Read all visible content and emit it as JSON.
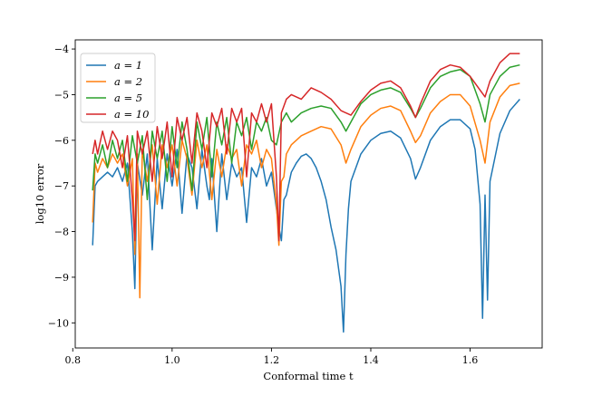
{
  "chart_data": {
    "type": "line",
    "title": "",
    "xlabel": "Conformal time t",
    "ylabel": "log10 error",
    "xlim": [
      0.805,
      1.745
    ],
    "ylim": [
      -10.55,
      -3.8
    ],
    "xticks": [
      0.8,
      1.0,
      1.2,
      1.4,
      1.6
    ],
    "xtick_labels": [
      "0.8",
      "1.0",
      "1.2",
      "1.4",
      "1.6"
    ],
    "yticks": [
      -4,
      -5,
      -6,
      -7,
      -8,
      -9,
      -10
    ],
    "ytick_labels": [
      "−4",
      "−5",
      "−6",
      "−7",
      "−8",
      "−9",
      "−10"
    ],
    "grid": false,
    "legend_position": "top-left",
    "series": [
      {
        "name": "a = 1",
        "color": "#1f77b4",
        "x": [
          0.84,
          0.845,
          0.85,
          0.86,
          0.87,
          0.88,
          0.89,
          0.9,
          0.91,
          0.92,
          0.925,
          0.93,
          0.94,
          0.95,
          0.96,
          0.97,
          0.98,
          0.99,
          1.0,
          1.01,
          1.02,
          1.03,
          1.04,
          1.05,
          1.06,
          1.07,
          1.075,
          1.08,
          1.09,
          1.1,
          1.11,
          1.12,
          1.13,
          1.14,
          1.15,
          1.16,
          1.17,
          1.18,
          1.19,
          1.2,
          1.21,
          1.215,
          1.22,
          1.225,
          1.23,
          1.24,
          1.25,
          1.26,
          1.27,
          1.28,
          1.29,
          1.3,
          1.31,
          1.32,
          1.33,
          1.34,
          1.345,
          1.35,
          1.355,
          1.36,
          1.38,
          1.4,
          1.42,
          1.44,
          1.46,
          1.48,
          1.49,
          1.5,
          1.52,
          1.54,
          1.56,
          1.58,
          1.6,
          1.61,
          1.62,
          1.625,
          1.63,
          1.635,
          1.64,
          1.66,
          1.68,
          1.7
        ],
        "values": [
          -8.3,
          -7.0,
          -6.9,
          -6.8,
          -6.7,
          -6.8,
          -6.6,
          -6.9,
          -6.5,
          -8.0,
          -9.25,
          -6.5,
          -7.2,
          -6.3,
          -8.4,
          -6.4,
          -7.5,
          -6.3,
          -7.0,
          -6.2,
          -7.6,
          -6.3,
          -6.6,
          -7.5,
          -6.2,
          -7.0,
          -7.3,
          -6.4,
          -8.0,
          -6.3,
          -7.3,
          -6.5,
          -6.8,
          -6.6,
          -7.8,
          -6.6,
          -6.8,
          -6.4,
          -7.0,
          -6.7,
          -7.5,
          -7.9,
          -8.2,
          -7.3,
          -7.2,
          -6.7,
          -6.5,
          -6.35,
          -6.3,
          -6.4,
          -6.6,
          -6.9,
          -7.3,
          -7.9,
          -8.4,
          -9.2,
          -10.2,
          -8.5,
          -7.5,
          -6.9,
          -6.3,
          -6.0,
          -5.85,
          -5.8,
          -5.95,
          -6.4,
          -6.85,
          -6.6,
          -6.0,
          -5.7,
          -5.55,
          -5.55,
          -5.75,
          -6.2,
          -7.4,
          -9.9,
          -7.2,
          -9.5,
          -6.9,
          -5.85,
          -5.35,
          -5.1
        ]
      },
      {
        "name": "a = 2",
        "color": "#ff7f0e",
        "x": [
          0.84,
          0.845,
          0.85,
          0.86,
          0.87,
          0.88,
          0.89,
          0.9,
          0.91,
          0.92,
          0.925,
          0.93,
          0.935,
          0.94,
          0.95,
          0.96,
          0.97,
          0.98,
          0.99,
          1.0,
          1.01,
          1.02,
          1.03,
          1.04,
          1.05,
          1.06,
          1.07,
          1.08,
          1.09,
          1.1,
          1.11,
          1.12,
          1.13,
          1.14,
          1.15,
          1.16,
          1.17,
          1.18,
          1.19,
          1.2,
          1.21,
          1.215,
          1.22,
          1.225,
          1.23,
          1.24,
          1.26,
          1.28,
          1.3,
          1.32,
          1.34,
          1.35,
          1.36,
          1.38,
          1.4,
          1.42,
          1.44,
          1.46,
          1.48,
          1.49,
          1.5,
          1.52,
          1.54,
          1.56,
          1.58,
          1.6,
          1.62,
          1.63,
          1.64,
          1.66,
          1.68,
          1.7
        ],
        "values": [
          -7.8,
          -6.5,
          -6.7,
          -6.4,
          -6.6,
          -6.3,
          -6.5,
          -6.3,
          -7.0,
          -6.4,
          -8.5,
          -6.3,
          -9.45,
          -6.2,
          -6.9,
          -6.1,
          -7.4,
          -6.1,
          -6.6,
          -6.1,
          -7.0,
          -6.0,
          -6.4,
          -7.2,
          -6.0,
          -6.6,
          -6.1,
          -7.3,
          -6.2,
          -6.8,
          -6.1,
          -6.4,
          -6.2,
          -7.0,
          -6.1,
          -6.3,
          -6.0,
          -6.6,
          -6.2,
          -6.4,
          -7.4,
          -8.3,
          -6.9,
          -6.8,
          -6.3,
          -6.1,
          -5.9,
          -5.8,
          -5.7,
          -5.75,
          -6.1,
          -6.5,
          -6.2,
          -5.7,
          -5.45,
          -5.3,
          -5.25,
          -5.35,
          -5.8,
          -6.05,
          -5.9,
          -5.4,
          -5.15,
          -5.0,
          -5.0,
          -5.25,
          -6.0,
          -6.5,
          -5.6,
          -5.05,
          -4.8,
          -4.75
        ]
      },
      {
        "name": "a = 5",
        "color": "#2ca02c",
        "x": [
          0.84,
          0.845,
          0.85,
          0.86,
          0.87,
          0.88,
          0.89,
          0.9,
          0.91,
          0.92,
          0.93,
          0.94,
          0.95,
          0.96,
          0.97,
          0.98,
          0.99,
          1.0,
          1.01,
          1.02,
          1.03,
          1.04,
          1.05,
          1.06,
          1.07,
          1.08,
          1.09,
          1.1,
          1.11,
          1.12,
          1.13,
          1.14,
          1.15,
          1.16,
          1.17,
          1.18,
          1.19,
          1.2,
          1.21,
          1.22,
          1.23,
          1.24,
          1.26,
          1.28,
          1.3,
          1.32,
          1.34,
          1.35,
          1.36,
          1.38,
          1.4,
          1.42,
          1.44,
          1.46,
          1.48,
          1.49,
          1.5,
          1.52,
          1.54,
          1.56,
          1.58,
          1.6,
          1.62,
          1.63,
          1.64,
          1.66,
          1.68,
          1.7
        ],
        "values": [
          -7.1,
          -6.3,
          -6.5,
          -6.1,
          -6.6,
          -6.0,
          -6.4,
          -6.0,
          -6.9,
          -5.9,
          -6.5,
          -5.9,
          -7.3,
          -5.8,
          -6.4,
          -5.8,
          -6.9,
          -5.7,
          -6.6,
          -5.6,
          -6.2,
          -7.1,
          -5.6,
          -6.2,
          -5.5,
          -6.8,
          -5.6,
          -6.1,
          -5.5,
          -6.5,
          -5.6,
          -5.9,
          -5.5,
          -6.2,
          -5.6,
          -5.8,
          -5.5,
          -6.0,
          -6.1,
          -5.6,
          -5.4,
          -5.6,
          -5.4,
          -5.3,
          -5.25,
          -5.3,
          -5.6,
          -5.8,
          -5.6,
          -5.2,
          -5.0,
          -4.9,
          -4.85,
          -4.95,
          -5.3,
          -5.5,
          -5.3,
          -4.85,
          -4.6,
          -4.5,
          -4.45,
          -4.6,
          -5.2,
          -5.6,
          -5.0,
          -4.6,
          -4.4,
          -4.35
        ]
      },
      {
        "name": "a = 10",
        "color": "#d62728",
        "x": [
          0.84,
          0.845,
          0.85,
          0.86,
          0.87,
          0.88,
          0.89,
          0.9,
          0.91,
          0.92,
          0.925,
          0.93,
          0.94,
          0.95,
          0.96,
          0.97,
          0.98,
          0.99,
          1.0,
          1.01,
          1.02,
          1.03,
          1.04,
          1.05,
          1.06,
          1.07,
          1.08,
          1.09,
          1.1,
          1.11,
          1.12,
          1.13,
          1.14,
          1.15,
          1.16,
          1.17,
          1.18,
          1.19,
          1.2,
          1.21,
          1.215,
          1.22,
          1.23,
          1.24,
          1.26,
          1.28,
          1.3,
          1.32,
          1.34,
          1.36,
          1.38,
          1.4,
          1.42,
          1.44,
          1.46,
          1.48,
          1.49,
          1.5,
          1.52,
          1.54,
          1.56,
          1.58,
          1.6,
          1.62,
          1.63,
          1.64,
          1.66,
          1.68,
          1.7
        ],
        "values": [
          -6.3,
          -6.0,
          -6.3,
          -5.8,
          -6.2,
          -5.8,
          -6.0,
          -6.6,
          -5.9,
          -7.3,
          -8.2,
          -5.8,
          -6.3,
          -5.8,
          -6.9,
          -5.7,
          -6.4,
          -5.6,
          -6.8,
          -5.5,
          -6.0,
          -5.5,
          -6.5,
          -5.4,
          -5.8,
          -6.6,
          -5.4,
          -5.7,
          -5.3,
          -6.3,
          -5.3,
          -5.6,
          -5.3,
          -6.8,
          -5.4,
          -5.6,
          -5.2,
          -5.6,
          -5.2,
          -6.8,
          -8.2,
          -5.4,
          -5.1,
          -5.0,
          -5.1,
          -4.85,
          -4.95,
          -5.1,
          -5.35,
          -5.45,
          -5.15,
          -4.9,
          -4.75,
          -4.7,
          -4.85,
          -5.25,
          -5.5,
          -5.2,
          -4.7,
          -4.45,
          -4.35,
          -4.4,
          -4.6,
          -4.9,
          -5.05,
          -4.7,
          -4.3,
          -4.1,
          -4.1
        ]
      }
    ]
  }
}
